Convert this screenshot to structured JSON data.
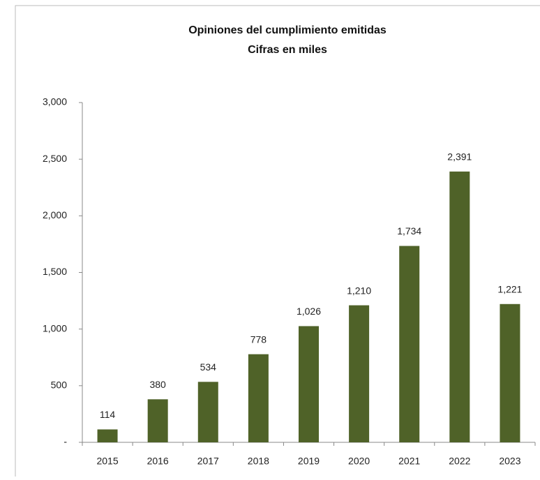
{
  "chart_data": {
    "type": "bar",
    "title": "Opiniones del cumplimiento emitidas",
    "subtitle": "Cifras en miles",
    "categories": [
      "2015",
      "2016",
      "2017",
      "2018",
      "2019",
      "2020",
      "2021",
      "2022",
      "2023"
    ],
    "values": [
      114,
      380,
      534,
      778,
      1026,
      1210,
      1734,
      2391,
      1221
    ],
    "value_labels": [
      "114",
      "380",
      "534",
      "778",
      "1,026",
      "1,210",
      "1,734",
      "2,391",
      "1,221"
    ],
    "color": "#4f6228",
    "ylim": [
      0,
      3000
    ],
    "yticks": [
      {
        "value": 0,
        "label": "-"
      },
      500,
      {
        "value": 1000,
        "label": "1,000"
      },
      {
        "value": 1500,
        "label": "1,500"
      },
      {
        "value": 2000,
        "label": "2,000"
      },
      {
        "value": 2500,
        "label": "2,500"
      },
      {
        "value": 3000,
        "label": "3,000"
      }
    ],
    "grid": false
  }
}
